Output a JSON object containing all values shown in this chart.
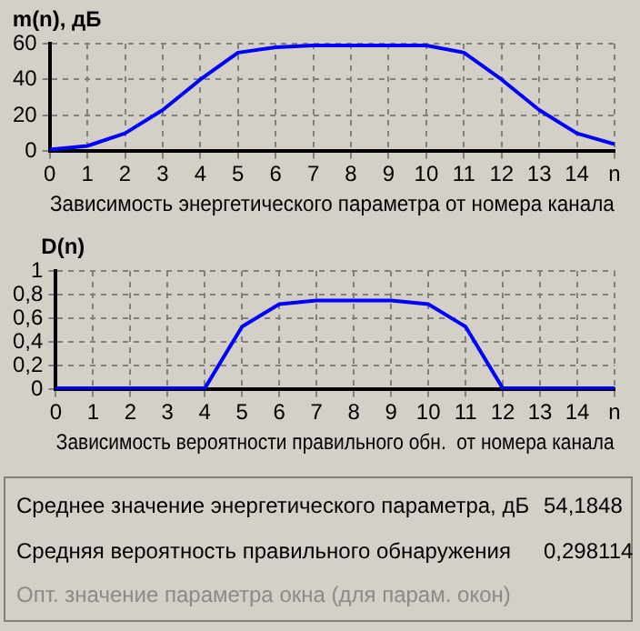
{
  "chart_data": [
    {
      "type": "line",
      "ylabel": "m(n), дБ",
      "xlabel": "Зависимость энергетического параметра от номера канала",
      "x": [
        0,
        1,
        2,
        3,
        4,
        5,
        6,
        7,
        8,
        9,
        10,
        11,
        12,
        13,
        14,
        15
      ],
      "series": [
        {
          "color": "#0000ff",
          "values": [
            1,
            3,
            10,
            23,
            40,
            55,
            58,
            59,
            59,
            59,
            59,
            55,
            40,
            23,
            10,
            4
          ]
        }
      ],
      "xlim": [
        0,
        15
      ],
      "xticks": [
        0,
        1,
        2,
        3,
        4,
        5,
        6,
        7,
        8,
        9,
        10,
        11,
        12,
        13,
        14,
        {
          "value": 15,
          "label": "n"
        }
      ],
      "ylim": [
        0,
        60
      ],
      "yticks": [
        0,
        20,
        40,
        60
      ],
      "grid": true,
      "marker": "none",
      "line_style": "solid"
    },
    {
      "type": "line",
      "ylabel": "D(n)",
      "xlabel": "Зависимость вероятности правильного обн.  от номера канала",
      "x": [
        0,
        1,
        2,
        3,
        4,
        5,
        6,
        7,
        8,
        9,
        10,
        11,
        12,
        13,
        14,
        15
      ],
      "series": [
        {
          "color": "#0000ff",
          "values": [
            0.01,
            0.01,
            0.01,
            0.01,
            0.01,
            0.53,
            0.72,
            0.75,
            0.75,
            0.75,
            0.72,
            0.53,
            0.01,
            0.01,
            0.01,
            0.01
          ]
        }
      ],
      "xlim": [
        0,
        15
      ],
      "xticks": [
        0,
        1,
        2,
        3,
        4,
        5,
        6,
        7,
        8,
        9,
        10,
        11,
        12,
        13,
        14,
        {
          "value": 15,
          "label": "n"
        }
      ],
      "ylim": [
        0,
        1
      ],
      "yticks": [
        0,
        {
          "value": 0.2,
          "label": "0,2"
        },
        {
          "value": 0.4,
          "label": "0,4"
        },
        {
          "value": 0.6,
          "label": "0,6"
        },
        {
          "value": 0.8,
          "label": "0,8"
        },
        1
      ],
      "grid": true,
      "marker": "none",
      "line_style": "solid"
    },
    {
      "type": "other",
      "annotations": [
        "Среднее значение энергетического параметра, дБ",
        "54,1848",
        "Средняя вероятность правильного обнаружения",
        "0,298114",
        "Опт. значение параметра окна (для парам. окон)"
      ]
    }
  ]
}
